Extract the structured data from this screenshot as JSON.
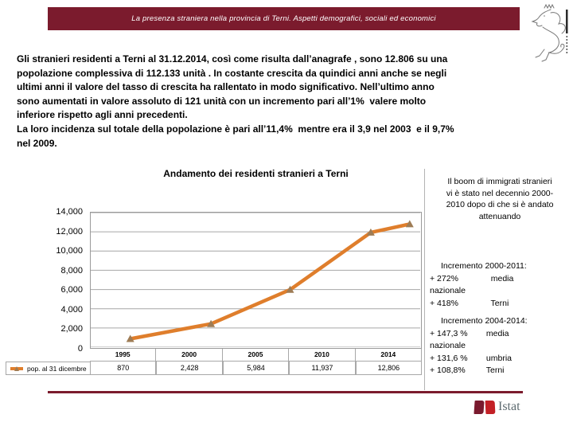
{
  "header": {
    "title": "La presenza straniera nella provincia di Terni. Aspetti demografici, sociali ed economici",
    "bar_color": "#7B1B2D"
  },
  "body": {
    "lines": [
      "Gli stranieri residenti a Terni al 31.12.2014, così come risulta dall’anagrafe , sono 12.806 su una",
      "popolazione complessiva di 112.133 unità . In costante crescita da quindici anni anche se negli",
      "ultimi anni il valore del tasso di crescita ha rallentato in modo significativo. Nell’ultimo anno",
      "sono aumentati in valore assoluto di 121 unità con un incremento pari all’1%  valere molto",
      "inferiore rispetto agli anni precedenti.",
      "La loro incidenza sul totale della popolazione è pari all’11,4%  mentre era il 3,9 nel 2003  e il 9,7%",
      "nel 2009."
    ]
  },
  "chart_data": {
    "type": "line",
    "title": "Andamento dei residenti stranieri a Terni",
    "categories": [
      "1995",
      "2000",
      "2005",
      "2010",
      "2014"
    ],
    "series": [
      {
        "name": "pop. al 31 dicembre",
        "values": [
          870,
          2428,
          5984,
          11937,
          12806
        ]
      }
    ],
    "value_labels": [
      "870",
      "2,428",
      "5,984",
      "11,937",
      "12,806"
    ],
    "y_ticks": [
      0,
      2000,
      4000,
      6000,
      8000,
      10000,
      12000,
      14000
    ],
    "y_tick_labels": [
      "0",
      "2,000",
      "4,000",
      "6,000",
      "8,000",
      "10,000",
      "12,000",
      "14,000"
    ],
    "ylim": [
      0,
      14000
    ],
    "grid": true,
    "legend_position": "bottom-table",
    "line_color": "#DF7E2C",
    "marker_color": "#9E7C55",
    "marker": "triangle"
  },
  "annotations": {
    "boom_lines": [
      "Il boom di immigrati stranieri",
      "vi è stato nel decennio 2000-",
      "2010 dopo di che si è andato",
      "attenuando"
    ],
    "inc1": {
      "title": "Incremento 2000-2011:",
      "lines": [
        "+ 272%              media",
        "nazionale",
        "+ 418%              Terni"
      ]
    },
    "inc2": {
      "title": "Incremento 2004-2014:",
      "lines": [
        "+ 147,3 %        media",
        "nazionale",
        "+ 131,6 %        umbria",
        "+ 108,8%         Terni"
      ]
    }
  },
  "footer": {
    "istat_label": "Istat",
    "line_color": "#7B1B2D"
  }
}
